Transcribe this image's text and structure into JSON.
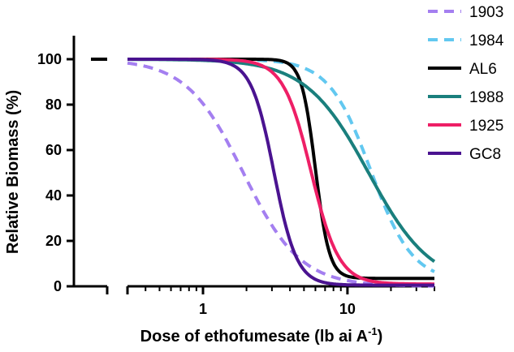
{
  "chart_data": {
    "type": "line",
    "title": "",
    "xlabel": "Dose of ethofumesate (lb ai A",
    "xlabel_superscript": "-1",
    "xlabel_suffix": ")",
    "ylabel": "Relative Biomass (%)",
    "x_scale": "log",
    "xlim": [
      0.3,
      40
    ],
    "ylim": [
      0,
      110
    ],
    "x_ticks": [
      {
        "value": 1,
        "label": "1"
      },
      {
        "value": 10,
        "label": "10"
      }
    ],
    "y_ticks": [
      0,
      20,
      40,
      60,
      80,
      100
    ],
    "control": {
      "x_label": "0",
      "y": 100
    },
    "legend_position": "top-right",
    "series": [
      {
        "name": "1903",
        "color": "#a47ff0",
        "dash": true,
        "ed50": 1.9,
        "slope": 2.2,
        "lower": 0
      },
      {
        "name": "1984",
        "color": "#62c8f0",
        "dash": true,
        "ed50": 14.5,
        "slope": 3.0,
        "lower": 2
      },
      {
        "name": "AL6",
        "color": "#000000",
        "dash": false,
        "ed50": 6.0,
        "slope": 9.0,
        "lower": 3.5
      },
      {
        "name": "1988",
        "color": "#1a7f7d",
        "dash": false,
        "ed50": 14.0,
        "slope": 2.0,
        "lower": 0
      },
      {
        "name": "1925",
        "color": "#ee1f66",
        "dash": false,
        "ed50": 5.6,
        "slope": 4.5,
        "lower": 1
      },
      {
        "name": "GC8",
        "color": "#4a1390",
        "dash": false,
        "ed50": 3.1,
        "slope": 5.5,
        "lower": 0.5
      }
    ]
  }
}
